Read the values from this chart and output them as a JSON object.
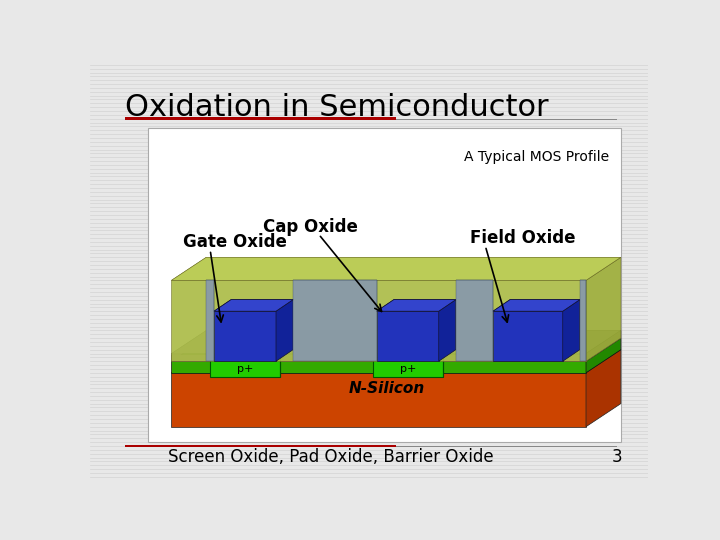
{
  "title": "Oxidation in Semiconductor",
  "subtitle": "A Typical MOS Profile",
  "bottom_text": "Screen Oxide, Pad Oxide, Barrier Oxide",
  "page_number": "3",
  "slide_bg": "#e8e8e8",
  "title_color": "#000000",
  "title_line_color": "#aa0000",
  "subtitle_color": "#000000",
  "label_gate": "Gate Oxide",
  "label_cap": "Cap Oxide",
  "label_field": "Field Oxide",
  "label_nsilicon": "N-Silicon",
  "label_p1": "p+",
  "label_p2": "p+",
  "stripe_color": "#d0d0d0",
  "diagram_bg": "#ffffff",
  "orange_front": "#cc4400",
  "orange_top": "#dd5500",
  "orange_right": "#aa3300",
  "green_front": "#33aa00",
  "green_top": "#44bb11",
  "green_right": "#228800",
  "gray_front": "#888888",
  "gray_top": "#999999",
  "gray_right": "#777777",
  "blue_front": "#2233bb",
  "blue_top": "#3344cc",
  "blue_right": "#112299",
  "yg_front": "#aabb44",
  "yg_top": "#bbcc55",
  "yg_right": "#99aa33",
  "fo_color": "#8899aa",
  "pplus_color": "#22cc00"
}
